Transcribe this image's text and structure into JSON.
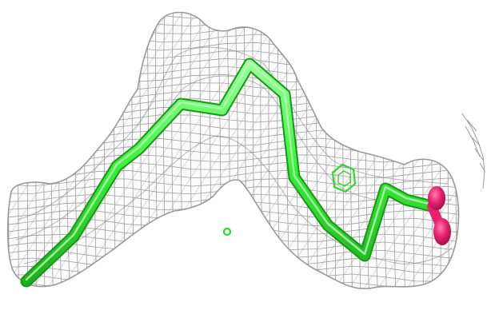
{
  "colors": {
    "background": "#ffffff",
    "mesh": "#8f8f8f",
    "ligand_carbon": "#3df23d",
    "ligand_carbon_dark": "#22c422",
    "oxygen": "#e8216e",
    "oxygen_dark": "#b8124f",
    "stray_density": "#9a9a9a"
  },
  "molecule": {
    "representation": "stick",
    "elements": [
      "C",
      "O"
    ],
    "electron_density": "mesh"
  }
}
